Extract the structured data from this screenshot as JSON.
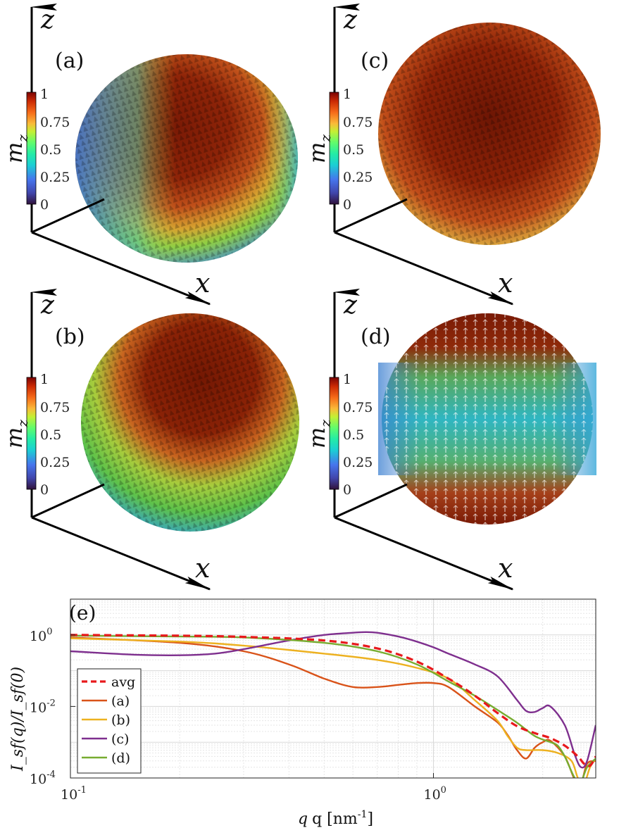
{
  "panels": [
    {
      "id": "a",
      "label": "(a)",
      "axis_vertical": "z",
      "axis_horizontal": "x",
      "colorbar": {
        "label": "m",
        "label_sub": "z",
        "ticks": [
          "0",
          "0.25",
          "0.5",
          "0.75",
          "1"
        ]
      }
    },
    {
      "id": "c",
      "label": "(c)",
      "axis_vertical": "z",
      "axis_horizontal": "x",
      "colorbar": {
        "label": "m",
        "label_sub": "z",
        "ticks": [
          "0",
          "0.25",
          "0.5",
          "0.75",
          "1"
        ]
      }
    },
    {
      "id": "b",
      "label": "(b)",
      "axis_vertical": "z",
      "axis_horizontal": "x",
      "colorbar": {
        "label": "m",
        "label_sub": "z",
        "ticks": [
          "0",
          "0.25",
          "0.5",
          "0.75",
          "1"
        ]
      }
    },
    {
      "id": "d",
      "label": "(d)",
      "axis_vertical": "z",
      "axis_horizontal": "x",
      "colorbar": {
        "label": "m",
        "label_sub": "z",
        "ticks": [
          "0",
          "0.25",
          "0.5",
          "0.75",
          "1"
        ]
      }
    }
  ],
  "colors": {
    "avg": "#e8191c",
    "a": "#d95319",
    "b": "#edb120",
    "c": "#7e2f8e",
    "d": "#77ac30",
    "dark_red": "#7a1a05",
    "mid_red": "#a93210",
    "orange": "#e0782a",
    "yellow_green": "#c2c838",
    "green": "#6fc44a",
    "cyan": "#2fb6c2",
    "blue": "#3b6fd0"
  },
  "chart_data": {
    "type": "line",
    "panel_label": "(e)",
    "xlabel": "q [nm",
    "xlabel_sup": "-1",
    "xlabel_close": "]",
    "ylabel": "I_sf(q)/I_sf(0)",
    "xscale": "log",
    "yscale": "log",
    "xlim": [
      0.1,
      2.8
    ],
    "ylim": [
      0.0001,
      10
    ],
    "grid": true,
    "legend_position": "bottom-left",
    "x_ticks": [
      {
        "v": 0.1,
        "base": "10",
        "exp": "-1"
      },
      {
        "v": 1,
        "base": "10",
        "exp": "0"
      }
    ],
    "y_ticks": [
      {
        "v": 0.0001,
        "base": "10",
        "exp": "-4"
      },
      {
        "v": 0.01,
        "base": "10",
        "exp": "-2"
      },
      {
        "v": 1,
        "base": "10",
        "exp": "0"
      }
    ],
    "series": [
      {
        "name": "avg",
        "key": "avg",
        "dashed": true,
        "x": [
          0.1,
          0.2,
          0.3,
          0.5,
          0.7,
          0.9,
          1.1,
          1.3,
          1.5,
          1.7,
          1.9,
          2.1,
          2.3,
          2.5,
          2.6,
          2.7,
          2.8
        ],
        "y": [
          1.0,
          0.95,
          0.88,
          0.7,
          0.42,
          0.18,
          0.06,
          0.02,
          0.0066,
          0.0028,
          0.0018,
          0.0013,
          0.0008,
          0.0004,
          0.00025,
          0.00022,
          0.0004
        ]
      },
      {
        "name": "(a)",
        "key": "a",
        "dashed": false,
        "x": [
          0.1,
          0.2,
          0.3,
          0.4,
          0.5,
          0.6,
          0.7,
          0.8,
          0.9,
          1.0,
          1.1,
          1.3,
          1.5,
          1.6,
          1.7,
          1.8,
          1.9,
          2.0,
          2.1,
          2.3,
          2.45,
          2.55,
          2.65,
          2.8
        ],
        "y": [
          0.85,
          0.6,
          0.35,
          0.15,
          0.06,
          0.035,
          0.035,
          0.04,
          0.045,
          0.045,
          0.035,
          0.01,
          0.0036,
          0.0016,
          0.0006,
          0.00035,
          0.0007,
          0.001,
          0.0011,
          0.0004,
          9e-05,
          7e-05,
          0.00025,
          0.0003
        ]
      },
      {
        "name": "(b)",
        "key": "b",
        "dashed": false,
        "x": [
          0.1,
          0.2,
          0.3,
          0.5,
          0.7,
          0.9,
          1.1,
          1.3,
          1.5,
          1.6,
          1.7,
          1.8,
          2.0,
          2.2,
          2.4,
          2.5,
          2.6,
          2.7,
          2.8
        ],
        "y": [
          0.8,
          0.65,
          0.5,
          0.3,
          0.2,
          0.12,
          0.06,
          0.015,
          0.004,
          0.0015,
          0.0007,
          0.0006,
          0.0006,
          0.0005,
          0.0003,
          0.0001,
          7e-05,
          0.0002,
          0.00035
        ]
      },
      {
        "name": "(c)",
        "key": "c",
        "dashed": false,
        "x": [
          0.1,
          0.15,
          0.2,
          0.25,
          0.3,
          0.4,
          0.5,
          0.6,
          0.65,
          0.7,
          0.8,
          0.9,
          1.0,
          1.1,
          1.3,
          1.5,
          1.7,
          1.8,
          1.9,
          2.0,
          2.1,
          2.3,
          2.45,
          2.55,
          2.65,
          2.8
        ],
        "y": [
          0.35,
          0.28,
          0.27,
          0.3,
          0.4,
          0.7,
          1.0,
          1.15,
          1.2,
          1.15,
          0.9,
          0.65,
          0.45,
          0.3,
          0.15,
          0.07,
          0.015,
          0.0075,
          0.007,
          0.009,
          0.01,
          0.003,
          0.00045,
          0.0002,
          0.0003,
          0.003
        ]
      },
      {
        "name": "(d)",
        "key": "d",
        "dashed": false,
        "x": [
          0.1,
          0.2,
          0.3,
          0.5,
          0.7,
          0.9,
          1.1,
          1.3,
          1.5,
          1.7,
          1.9,
          2.1,
          2.2,
          2.3,
          2.45,
          2.55,
          2.65,
          2.8
        ],
        "y": [
          0.95,
          0.9,
          0.85,
          0.6,
          0.35,
          0.15,
          0.05,
          0.02,
          0.008,
          0.0035,
          0.0015,
          0.001,
          0.0008,
          0.0004,
          0.0001,
          8e-05,
          0.0002,
          0.00035
        ]
      }
    ]
  }
}
